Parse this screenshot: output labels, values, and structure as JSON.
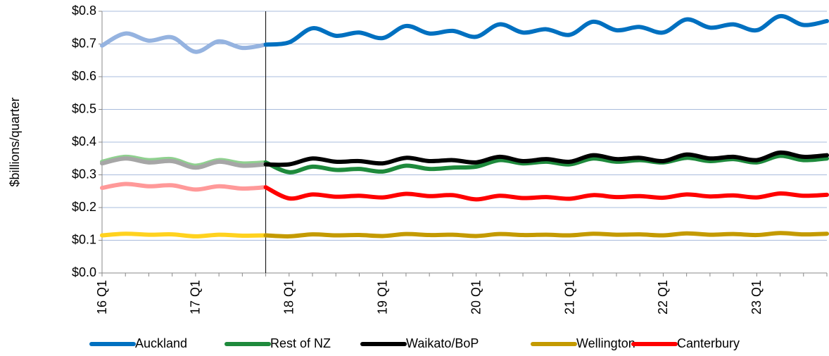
{
  "chart_data": {
    "type": "line",
    "y_label": "$billions/quarter",
    "categories": [
      "16 Q1",
      null,
      null,
      null,
      "17 Q1",
      null,
      null,
      null,
      "18 Q1",
      null,
      null,
      null,
      "19 Q1",
      null,
      null,
      null,
      "20 Q1",
      null,
      null,
      null,
      "21 Q1",
      null,
      null,
      null,
      "22 Q1",
      null,
      null,
      null,
      "23 Q1",
      null,
      null,
      null
    ],
    "divider_index": 7,
    "ylim": [
      0,
      0.8
    ],
    "yticks": [
      {
        "value": 0,
        "label": "$0.0"
      },
      {
        "value": 0.1,
        "label": "$0.1"
      },
      {
        "value": 0.2,
        "label": "$0.2"
      },
      {
        "value": 0.3,
        "label": "$0.3"
      },
      {
        "value": 0.4,
        "label": "$0.4"
      },
      {
        "value": 0.5,
        "label": "$0.5"
      },
      {
        "value": 0.6,
        "label": "$0.6"
      },
      {
        "value": 0.7,
        "label": "$0.7"
      },
      {
        "value": 0.8,
        "label": "$0.8"
      }
    ],
    "grid": true,
    "legend": "bottom",
    "series": [
      {
        "name": "Auckland",
        "color": "#0070c0",
        "history_color": "#95b3e0",
        "values": [
          0.695,
          0.732,
          0.71,
          0.72,
          0.676,
          0.708,
          0.688,
          0.698,
          0.705,
          0.748,
          0.725,
          0.735,
          0.718,
          0.755,
          0.732,
          0.74,
          0.722,
          0.76,
          0.735,
          0.745,
          0.728,
          0.768,
          0.742,
          0.752,
          0.735,
          0.775,
          0.75,
          0.76,
          0.742,
          0.785,
          0.758,
          0.77
        ]
      },
      {
        "name": "Rest of NZ",
        "color": "#1e8a3c",
        "history_color": "#8fd18f",
        "values": [
          0.34,
          0.355,
          0.345,
          0.348,
          0.328,
          0.345,
          0.335,
          0.338,
          0.308,
          0.325,
          0.315,
          0.318,
          0.31,
          0.328,
          0.318,
          0.322,
          0.325,
          0.345,
          0.335,
          0.34,
          0.332,
          0.35,
          0.34,
          0.345,
          0.338,
          0.352,
          0.342,
          0.348,
          0.338,
          0.358,
          0.345,
          0.35
        ]
      },
      {
        "name": "Waikato/BoP",
        "color": "#000000",
        "history_color": "#a6a6a6",
        "values": [
          0.335,
          0.35,
          0.338,
          0.342,
          0.322,
          0.34,
          0.328,
          0.332,
          0.332,
          0.35,
          0.34,
          0.342,
          0.335,
          0.352,
          0.342,
          0.345,
          0.338,
          0.355,
          0.342,
          0.348,
          0.34,
          0.36,
          0.348,
          0.352,
          0.342,
          0.362,
          0.35,
          0.355,
          0.345,
          0.368,
          0.355,
          0.36
        ]
      },
      {
        "name": "Wellington",
        "color": "#c49a00",
        "history_color": "#ffd21f",
        "values": [
          0.115,
          0.12,
          0.117,
          0.118,
          0.112,
          0.117,
          0.114,
          0.115,
          0.112,
          0.118,
          0.115,
          0.116,
          0.113,
          0.119,
          0.116,
          0.117,
          0.113,
          0.119,
          0.116,
          0.117,
          0.115,
          0.12,
          0.117,
          0.118,
          0.115,
          0.121,
          0.117,
          0.119,
          0.116,
          0.122,
          0.118,
          0.12
        ]
      },
      {
        "name": "Canterbury",
        "color": "#ff0000",
        "history_color": "#ff9999",
        "values": [
          0.26,
          0.272,
          0.265,
          0.268,
          0.255,
          0.265,
          0.258,
          0.262,
          0.228,
          0.24,
          0.233,
          0.236,
          0.231,
          0.242,
          0.235,
          0.238,
          0.225,
          0.236,
          0.229,
          0.232,
          0.227,
          0.238,
          0.232,
          0.235,
          0.23,
          0.24,
          0.234,
          0.237,
          0.231,
          0.243,
          0.236,
          0.239
        ]
      }
    ]
  }
}
